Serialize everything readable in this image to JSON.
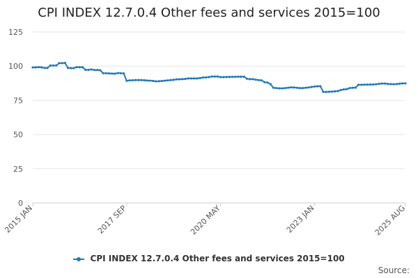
{
  "colors": {
    "series": "#1f7ab8",
    "grid": "#e6e6e6",
    "axis": "#cccccc"
  },
  "legend": {
    "label": "CPI INDEX 12.7.0.4 Other fees and services 2015=100"
  },
  "source": {
    "label": "Source:"
  },
  "chart_data": {
    "type": "line",
    "title": "CPI INDEX 12.7.0.4 Other fees and services 2015=100",
    "xlabel": "",
    "ylabel": "",
    "ylim": [
      0,
      125
    ],
    "yticks": [
      0,
      25,
      50,
      75,
      100,
      125
    ],
    "xtick_labels": [
      {
        "label": "2015 JAN",
        "index": 0
      },
      {
        "label": "2017 SEP",
        "index": 32
      },
      {
        "label": "2020 MAY",
        "index": 64
      },
      {
        "label": "2023 JAN",
        "index": 96
      },
      {
        "label": "2025 AUG",
        "index": 127
      }
    ],
    "grid": true,
    "legend_position": "bottom",
    "series": [
      {
        "name": "CPI INDEX 12.7.0.4 Other fees and services 2015=100",
        "start": "2015 JAN",
        "end": "2025 AUG",
        "frequency": "monthly",
        "values": [
          99.1,
          99.1,
          99.3,
          99.1,
          98.7,
          98.7,
          100.5,
          100.5,
          100.5,
          102.2,
          102.2,
          102.4,
          98.7,
          98.6,
          98.6,
          99.3,
          99.2,
          99.2,
          97.3,
          97.3,
          97.6,
          97.2,
          97.2,
          97.0,
          94.8,
          94.8,
          94.7,
          94.6,
          94.5,
          95.0,
          94.8,
          94.7,
          89.3,
          89.6,
          89.7,
          89.8,
          89.8,
          89.8,
          89.7,
          89.5,
          89.4,
          89.2,
          88.9,
          89.0,
          89.2,
          89.4,
          89.6,
          89.8,
          90.0,
          90.4,
          90.4,
          90.5,
          90.7,
          91.0,
          91.0,
          91.0,
          91.0,
          91.3,
          91.7,
          91.8,
          92.0,
          92.4,
          92.4,
          92.4,
          92.0,
          92.0,
          92.1,
          92.1,
          92.2,
          92.2,
          92.3,
          92.3,
          92.3,
          90.8,
          90.5,
          90.5,
          90.1,
          89.8,
          89.6,
          88.3,
          88.0,
          86.9,
          84.2,
          84.0,
          83.8,
          83.8,
          84.0,
          84.2,
          84.5,
          84.4,
          84.2,
          84.0,
          84.0,
          84.2,
          84.4,
          84.8,
          85.1,
          85.3,
          85.3,
          81.2,
          81.2,
          81.3,
          81.4,
          81.6,
          81.8,
          82.6,
          83.0,
          83.2,
          84.0,
          84.2,
          84.3,
          86.4,
          86.4,
          86.5,
          86.5,
          86.6,
          86.6,
          86.8,
          87.1,
          87.3,
          87.3,
          87.0,
          86.9,
          86.8,
          86.9,
          87.2,
          87.4,
          87.4
        ]
      }
    ]
  }
}
